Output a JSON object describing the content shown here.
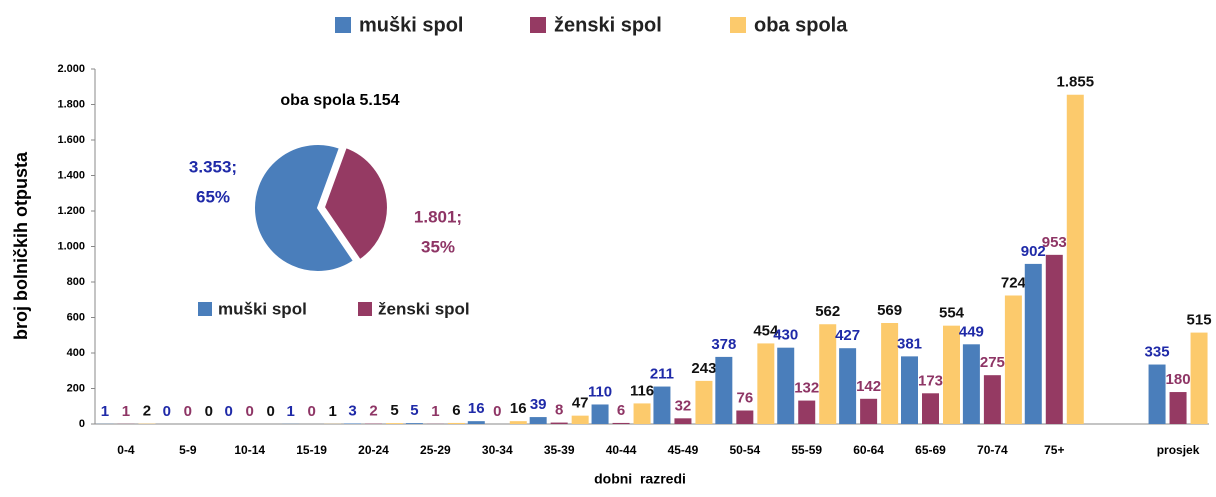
{
  "chart_data": [
    {
      "type": "bar",
      "y_label": "broj bolničkih otpusta",
      "x_label": "dobni  razredi",
      "categories": [
        "0-4",
        "5-9",
        "10-14",
        "15-19",
        "20-24",
        "25-29",
        "30-34",
        "35-39",
        "40-44",
        "45-49",
        "50-54",
        "55-59",
        "60-64",
        "65-69",
        "70-74",
        "75+",
        null,
        "prosjek"
      ],
      "series": [
        {
          "name": "muški spol",
          "color": "#4a7ebb",
          "label_color": "#1f2aa8",
          "values": [
            1,
            0,
            0,
            1,
            3,
            5,
            16,
            39,
            110,
            211,
            378,
            430,
            427,
            381,
            449,
            902,
            null,
            335
          ]
        },
        {
          "name": "ženski spol",
          "color": "#953a63",
          "label_color": "#8e3565",
          "values": [
            1,
            0,
            0,
            0,
            2,
            1,
            0,
            8,
            6,
            32,
            76,
            132,
            142,
            173,
            275,
            953,
            null,
            180
          ]
        },
        {
          "name": "oba spola",
          "color": "#fcca6c",
          "label_color": "#111111",
          "values": [
            2,
            0,
            0,
            1,
            5,
            6,
            16,
            47,
            116,
            243,
            454,
            562,
            569,
            554,
            724,
            1855,
            null,
            515
          ],
          "value_labels": [
            "2",
            "0",
            "0",
            "1",
            "5",
            "6",
            "16",
            "47",
            "116",
            "243",
            "454",
            "562",
            "569",
            "554",
            "724",
            "1.855",
            null,
            "515"
          ]
        }
      ],
      "ylim": [
        0,
        2000
      ],
      "yticks": [
        0,
        200,
        400,
        600,
        800,
        {
          "value": 1000,
          "label": "1.000"
        },
        {
          "value": 1200,
          "label": "1.200"
        },
        {
          "value": 1400,
          "label": "1.400"
        },
        {
          "value": 1600,
          "label": "1.600"
        },
        {
          "value": 1800,
          "label": "1.800"
        },
        {
          "value": 2000,
          "label": "2.000"
        }
      ],
      "grid": false,
      "legend": "top"
    },
    {
      "type": "pie",
      "title": "oba spola 5.154",
      "categories": [
        "muški spol",
        "ženski spol"
      ],
      "colors": [
        "#4a7ebb",
        "#953a63"
      ],
      "label_colors": [
        "#1f2aa8",
        "#8e3565"
      ],
      "values": [
        3353,
        1801
      ],
      "value_labels": [
        "3.353;",
        "1.801;"
      ],
      "percentages": [
        65,
        35
      ],
      "percentage_labels": [
        "65%",
        "35%"
      ]
    }
  ]
}
